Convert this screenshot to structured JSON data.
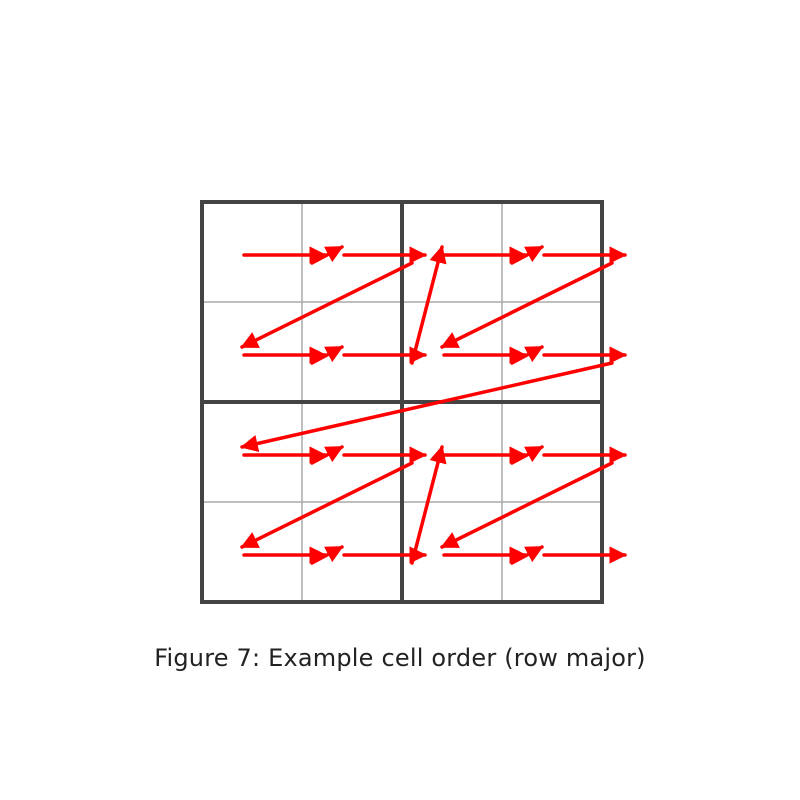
{
  "caption": "Figure 7: Example cell order (row major)",
  "colors": {
    "arrow": "#ff0000",
    "outer_grid": "#444444",
    "inner_grid": "#aaaaaa",
    "background": "#ffffff"
  },
  "grid": {
    "blocks_per_side": 2,
    "cells_per_block_side": 2
  },
  "traversal": {
    "order": "row major",
    "path_cells": [
      [
        0,
        0
      ],
      [
        0,
        1
      ],
      [
        1,
        0
      ],
      [
        1,
        1
      ],
      [
        0,
        2
      ],
      [
        0,
        3
      ],
      [
        1,
        2
      ],
      [
        1,
        3
      ],
      [
        2,
        0
      ],
      [
        2,
        1
      ],
      [
        3,
        0
      ],
      [
        3,
        1
      ],
      [
        2,
        2
      ],
      [
        2,
        3
      ],
      [
        3,
        2
      ],
      [
        3,
        3
      ]
    ]
  }
}
